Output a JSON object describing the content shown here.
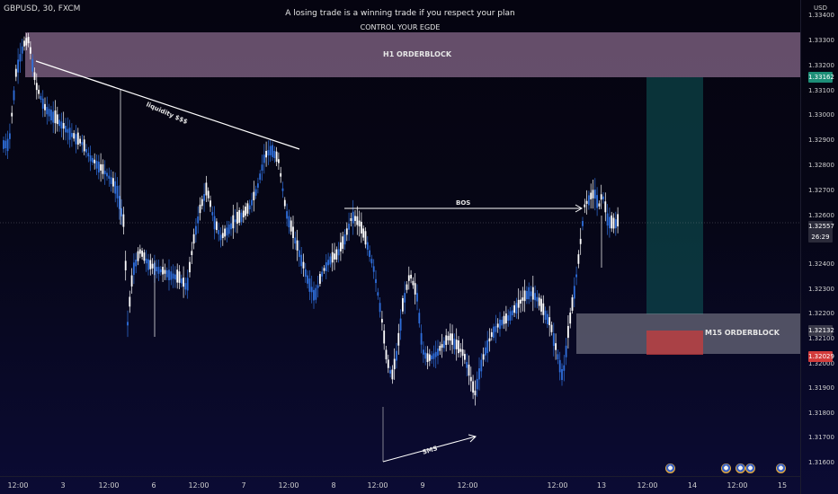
{
  "header": {
    "symbol": "GBPUSD, 30, FXCM",
    "headline": "A losing trade is a winning trade if you respect your plan",
    "subline": "CONTROL YOUR EGDE"
  },
  "annotations": {
    "h1_orderblock": "H1 ORDERBLOCK",
    "m15_orderblock": "M15 ORDERBLOCK",
    "liquidity": "liquidity $$$",
    "bos": "BOS",
    "sms": "SMS"
  },
  "price_axis": {
    "currency": "USD",
    "ticks": [
      "1.33400",
      "1.33300",
      "1.33200",
      "1.33100",
      "1.33000",
      "1.32900",
      "1.32800",
      "1.32700",
      "1.32600",
      "1.32400",
      "1.32300",
      "1.32200",
      "1.32100",
      "1.32000",
      "1.31900",
      "1.31800",
      "1.31700",
      "1.31600"
    ],
    "tag_target": "1.33162",
    "tag_last_price": "1.32557",
    "tag_countdown": "26:29",
    "tag_m15": "1.32132",
    "tag_stop": "1.32029"
  },
  "time_axis": {
    "labels": [
      "12:00",
      "3",
      "12:00",
      "6",
      "12:00",
      "7",
      "12:00",
      "8",
      "12:00",
      "9",
      "12:00",
      "12:00",
      "13",
      "12:00",
      "14",
      "12:00",
      "15"
    ]
  },
  "colors": {
    "bull": "#ffffff",
    "bear": "#2f6fdc",
    "h1_zone": "#b48cb4",
    "m15_zone": "#a8a8b4",
    "target_zone": "#0f5a5a",
    "stop_zone": "#c83c3c",
    "last_price": "#a0a0a8"
  },
  "icons": [
    "economic-event-icon"
  ]
}
